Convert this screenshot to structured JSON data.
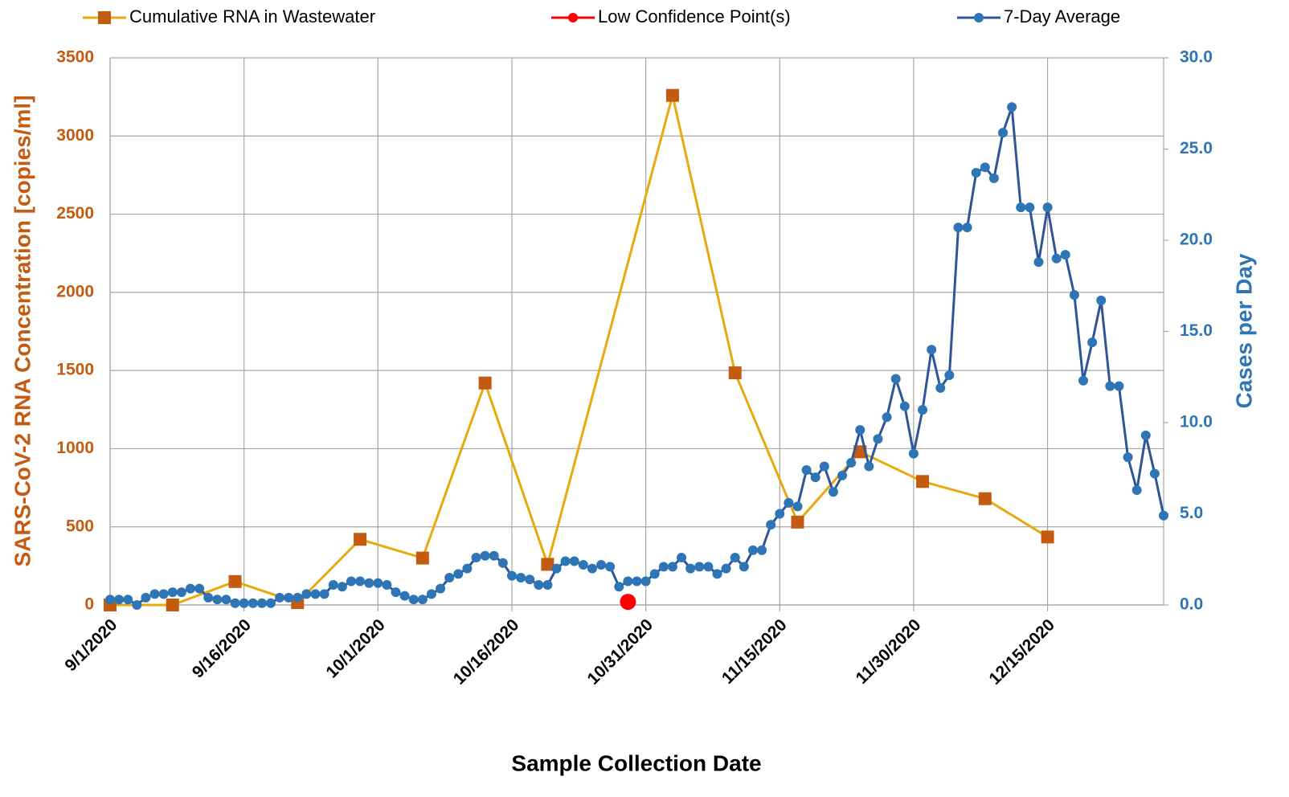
{
  "chart_data": {
    "type": "line",
    "x_axis_label": "Sample Collection Date",
    "y_axis_label": "SARS-CoV-2 RNA Concentration [copies/ml]",
    "y2_axis_label": "Cases per Day",
    "xlim": [
      "9/1/2020",
      "12/28/2020"
    ],
    "xticks": [
      "9/1/2020",
      "9/16/2020",
      "10/1/2020",
      "10/16/2020",
      "10/31/2020",
      "11/15/2020",
      "11/30/2020",
      "12/15/2020"
    ],
    "ylim": [
      0,
      3500
    ],
    "yticks": [
      0,
      500,
      1000,
      1500,
      2000,
      2500,
      3000,
      3500
    ],
    "y2lim": [
      0,
      30
    ],
    "y2ticks": [
      {
        "value": 0,
        "label": "0.0"
      },
      {
        "value": 5,
        "label": "5.0"
      },
      {
        "value": 10,
        "label": "10.0"
      },
      {
        "value": 15,
        "label": "15.0"
      },
      {
        "value": 20,
        "label": "20.0"
      },
      {
        "value": 25,
        "label": "25.0"
      },
      {
        "value": 30,
        "label": "30.0"
      }
    ],
    "grid": true,
    "y_label_color": "#C55A11",
    "y2_label_color": "#2E75B6",
    "series": [
      {
        "name": "Cumulative RNA in Wastewater",
        "color": "#E8A90E",
        "marker_color": "#C55A11",
        "marker": "square",
        "x": [
          "9/1/2020",
          "9/8/2020",
          "9/15/2020",
          "9/22/2020",
          "9/29/2020",
          "10/6/2020",
          "10/13/2020",
          "10/20/2020",
          "11/3/2020",
          "11/10/2020",
          "11/17/2020",
          "11/24/2020",
          "12/1/2020",
          "12/8/2020",
          "12/15/2020"
        ],
        "values": [
          0,
          0,
          150,
          15,
          420,
          300,
          1420,
          260,
          3260,
          1485,
          530,
          980,
          790,
          680,
          435
        ]
      },
      {
        "name": "Low Confidence Point(s)",
        "color": "#FF0000",
        "marker_color": "#FF0000",
        "marker": "circle-large",
        "x": [
          "10/29/2020"
        ],
        "values": [
          20
        ]
      },
      {
        "name": "7-Day Average",
        "color": "#2F5597",
        "marker_color": "#2E75B6",
        "marker": "circle",
        "axis": "y2",
        "x": [
          "9/1/2020",
          "9/2/2020",
          "9/3/2020",
          "9/4/2020",
          "9/5/2020",
          "9/6/2020",
          "9/7/2020",
          "9/8/2020",
          "9/9/2020",
          "9/10/2020",
          "9/11/2020",
          "9/12/2020",
          "9/13/2020",
          "9/14/2020",
          "9/15/2020",
          "9/16/2020",
          "9/17/2020",
          "9/18/2020",
          "9/19/2020",
          "9/20/2020",
          "9/21/2020",
          "9/22/2020",
          "9/23/2020",
          "9/24/2020",
          "9/25/2020",
          "9/26/2020",
          "9/27/2020",
          "9/28/2020",
          "9/29/2020",
          "9/30/2020",
          "10/1/2020",
          "10/2/2020",
          "10/3/2020",
          "10/4/2020",
          "10/5/2020",
          "10/6/2020",
          "10/7/2020",
          "10/8/2020",
          "10/9/2020",
          "10/10/2020",
          "10/11/2020",
          "10/12/2020",
          "10/13/2020",
          "10/14/2020",
          "10/15/2020",
          "10/16/2020",
          "10/17/2020",
          "10/18/2020",
          "10/19/2020",
          "10/20/2020",
          "10/21/2020",
          "10/22/2020",
          "10/23/2020",
          "10/24/2020",
          "10/25/2020",
          "10/26/2020",
          "10/27/2020",
          "10/28/2020",
          "10/29/2020",
          "10/30/2020",
          "10/31/2020",
          "11/1/2020",
          "11/2/2020",
          "11/3/2020",
          "11/4/2020",
          "11/5/2020",
          "11/6/2020",
          "11/7/2020",
          "11/8/2020",
          "11/9/2020",
          "11/10/2020",
          "11/11/2020",
          "11/12/2020",
          "11/13/2020",
          "11/14/2020",
          "11/15/2020",
          "11/16/2020",
          "11/17/2020",
          "11/18/2020",
          "11/19/2020",
          "11/20/2020",
          "11/21/2020",
          "11/22/2020",
          "11/23/2020",
          "11/24/2020",
          "11/25/2020",
          "11/26/2020",
          "11/27/2020",
          "11/28/2020",
          "11/29/2020",
          "11/30/2020",
          "12/1/2020",
          "12/2/2020",
          "12/3/2020",
          "12/4/2020",
          "12/5/2020",
          "12/6/2020",
          "12/7/2020",
          "12/8/2020",
          "12/9/2020",
          "12/10/2020",
          "12/11/2020",
          "12/12/2020",
          "12/13/2020",
          "12/14/2020",
          "12/15/2020",
          "12/16/2020",
          "12/17/2020",
          "12/18/2020",
          "12/19/2020",
          "12/20/2020",
          "12/21/2020",
          "12/22/2020",
          "12/23/2020",
          "12/24/2020",
          "12/25/2020",
          "12/26/2020",
          "12/27/2020",
          "12/28/2020"
        ],
        "values": [
          0.3,
          0.3,
          0.3,
          0.0,
          0.4,
          0.6,
          0.6,
          0.7,
          0.7,
          0.9,
          0.9,
          0.4,
          0.3,
          0.3,
          0.1,
          0.1,
          0.1,
          0.1,
          0.1,
          0.4,
          0.4,
          0.4,
          0.6,
          0.6,
          0.6,
          1.1,
          1.0,
          1.3,
          1.3,
          1.2,
          1.2,
          1.1,
          0.7,
          0.5,
          0.3,
          0.3,
          0.6,
          0.9,
          1.5,
          1.7,
          2.0,
          2.6,
          2.7,
          2.7,
          2.3,
          1.6,
          1.5,
          1.4,
          1.1,
          1.1,
          2.0,
          2.4,
          2.4,
          2.2,
          2.0,
          2.2,
          2.1,
          1.0,
          1.3,
          1.3,
          1.3,
          1.7,
          2.1,
          2.1,
          2.6,
          2.0,
          2.1,
          2.1,
          1.7,
          2.0,
          2.6,
          2.1,
          3.0,
          3.0,
          4.4,
          5.0,
          5.6,
          5.4,
          7.4,
          7.0,
          7.6,
          6.2,
          7.1,
          7.8,
          9.6,
          7.6,
          9.1,
          10.3,
          12.4,
          10.9,
          8.3,
          10.7,
          14.0,
          11.9,
          12.6,
          20.7,
          20.7,
          23.7,
          24.0,
          23.4,
          25.9,
          27.3,
          21.8,
          21.8,
          18.8,
          21.8,
          19.0,
          19.2,
          17.0,
          12.3,
          14.4,
          16.7,
          12.0,
          12.0,
          8.1,
          6.3,
          9.3,
          7.2,
          4.9
        ]
      }
    ]
  }
}
